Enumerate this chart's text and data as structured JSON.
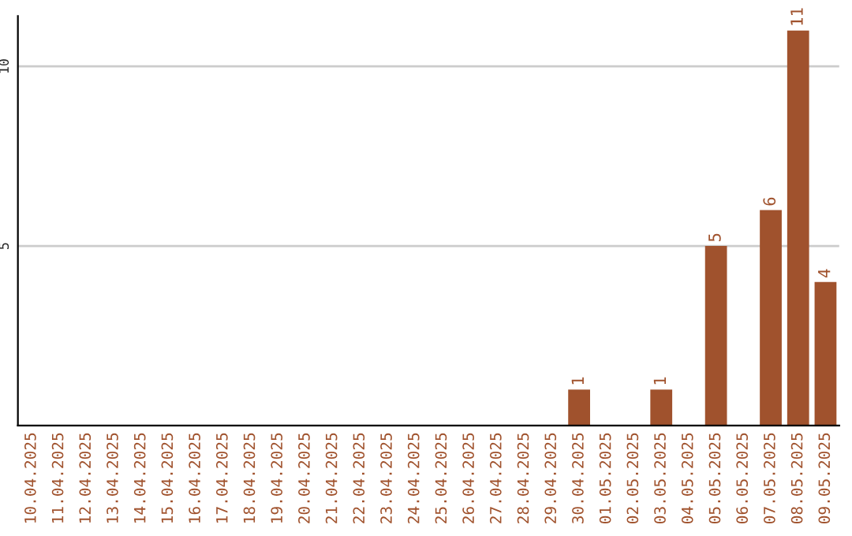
{
  "chart_data": {
    "type": "bar",
    "categories": [
      "10.04.2025",
      "11.04.2025",
      "12.04.2025",
      "13.04.2025",
      "14.04.2025",
      "15.04.2025",
      "16.04.2025",
      "17.04.2025",
      "18.04.2025",
      "19.04.2025",
      "20.04.2025",
      "21.04.2025",
      "22.04.2025",
      "23.04.2025",
      "24.04.2025",
      "25.04.2025",
      "26.04.2025",
      "27.04.2025",
      "28.04.2025",
      "29.04.2025",
      "30.04.2025",
      "01.05.2025",
      "02.05.2025",
      "03.05.2025",
      "04.05.2025",
      "05.05.2025",
      "06.05.2025",
      "07.05.2025",
      "08.05.2025",
      "09.05.2025"
    ],
    "values": [
      0,
      0,
      0,
      0,
      0,
      0,
      0,
      0,
      0,
      0,
      0,
      0,
      0,
      0,
      0,
      0,
      0,
      0,
      0,
      0,
      1,
      0,
      0,
      1,
      0,
      5,
      0,
      6,
      11,
      4
    ],
    "value_labels": [
      null,
      null,
      null,
      null,
      null,
      null,
      null,
      null,
      null,
      null,
      null,
      null,
      null,
      null,
      null,
      null,
      null,
      null,
      null,
      null,
      "1",
      null,
      null,
      "1",
      null,
      "5",
      null,
      "6",
      "11",
      "4"
    ],
    "color": "#a0522d",
    "ylim": [
      0,
      11.4
    ],
    "yticks": [
      5,
      10
    ],
    "grid": "y",
    "legend": false
  }
}
